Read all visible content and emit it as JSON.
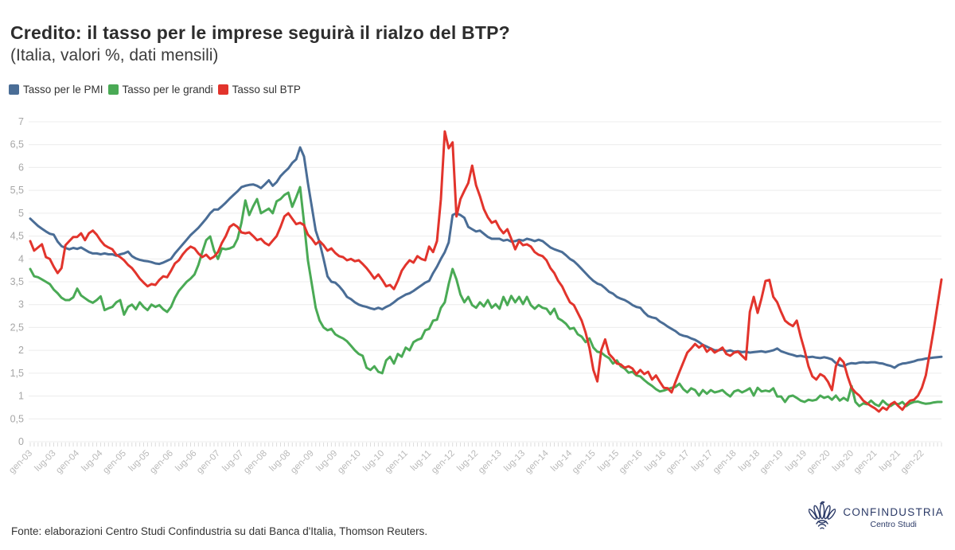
{
  "header": {
    "title": "Credito: il tasso per le imprese seguirà il rialzo del BTP?",
    "subtitle": "(Italia, valori %, dati mensili)"
  },
  "legend": [
    {
      "label": "Tasso per le PMI",
      "color": "#4a6d96"
    },
    {
      "label": "Tasso per le grandi",
      "color": "#4aaa55"
    },
    {
      "label": "Tasso sul BTP",
      "color": "#e2342c"
    }
  ],
  "footer": {
    "source": "Fonte: elaborazioni Centro Studi Confindustria su dati Banca d'Italia, Thomson Reuters."
  },
  "logo": {
    "name": "CONFINDUSTRIA",
    "sub": "Centro Studi",
    "color": "#2b3a67"
  },
  "chart_data": {
    "type": "line",
    "title": "Credito: il tasso per le imprese seguirà il rialzo del BTP?",
    "subtitle": "(Italia, valori %, dati mensili)",
    "x_unit": "monthly, gen-03 to giu-22",
    "ylim": [
      0,
      7
    ],
    "ytick_step": 0.5,
    "ytick_labels": [
      "0",
      "0,5",
      "1",
      "1,5",
      "2",
      "2,5",
      "3",
      "3,5",
      "4",
      "4,5",
      "5",
      "5,5",
      "6",
      "6,5",
      "7"
    ],
    "grid": "horizontal",
    "legend_position": "top-left",
    "x_labels": [
      "gen-03",
      "lug-03",
      "gen-04",
      "lug-04",
      "gen-05",
      "lug-05",
      "gen-06",
      "lug-06",
      "gen-07",
      "lug-07",
      "gen-08",
      "lug-08",
      "gen-09",
      "lug-09",
      "gen-10",
      "lug-10",
      "gen-11",
      "lug-11",
      "gen-12",
      "lug-12",
      "gen-13",
      "lug-13",
      "gen-14",
      "lug-14",
      "gen-15",
      "lug-15",
      "gen-16",
      "lug-16",
      "gen-17",
      "lug-17",
      "gen-18",
      "lug-18",
      "gen-19",
      "lug-19",
      "gen-20",
      "lug-20",
      "gen-21",
      "lug-21",
      "gen-22"
    ],
    "x_label_interval_months": 6,
    "series": [
      {
        "name": "Tasso per le PMI",
        "color": "#4a6d96",
        "values": [
          4.88,
          4.8,
          4.72,
          4.66,
          4.6,
          4.55,
          4.53,
          4.38,
          4.28,
          4.24,
          4.21,
          4.24,
          4.22,
          4.25,
          4.2,
          4.15,
          4.12,
          4.12,
          4.1,
          4.12,
          4.1,
          4.1,
          4.07,
          4.1,
          4.12,
          4.16,
          4.06,
          4.01,
          3.98,
          3.96,
          3.95,
          3.93,
          3.9,
          3.89,
          3.92,
          3.96,
          4.0,
          4.12,
          4.22,
          4.32,
          4.42,
          4.52,
          4.6,
          4.68,
          4.78,
          4.88,
          5.0,
          5.08,
          5.08,
          5.15,
          5.23,
          5.32,
          5.4,
          5.48,
          5.57,
          5.6,
          5.62,
          5.63,
          5.6,
          5.55,
          5.63,
          5.72,
          5.6,
          5.68,
          5.81,
          5.9,
          5.98,
          6.1,
          6.18,
          6.44,
          6.24,
          5.66,
          5.14,
          4.62,
          4.36,
          4.0,
          3.62,
          3.5,
          3.48,
          3.4,
          3.3,
          3.17,
          3.12,
          3.05,
          3.0,
          2.97,
          2.95,
          2.92,
          2.9,
          2.93,
          2.9,
          2.95,
          2.99,
          3.05,
          3.12,
          3.17,
          3.22,
          3.25,
          3.3,
          3.36,
          3.42,
          3.48,
          3.52,
          3.69,
          3.83,
          4.0,
          4.15,
          4.36,
          4.96,
          5.0,
          4.96,
          4.9,
          4.7,
          4.65,
          4.6,
          4.62,
          4.55,
          4.48,
          4.44,
          4.44,
          4.44,
          4.4,
          4.42,
          4.38,
          4.39,
          4.42,
          4.4,
          4.44,
          4.42,
          4.39,
          4.42,
          4.39,
          4.32,
          4.25,
          4.21,
          4.18,
          4.15,
          4.08,
          4.0,
          3.95,
          3.87,
          3.78,
          3.69,
          3.6,
          3.52,
          3.46,
          3.43,
          3.36,
          3.28,
          3.24,
          3.17,
          3.13,
          3.1,
          3.05,
          2.99,
          2.95,
          2.93,
          2.83,
          2.75,
          2.72,
          2.7,
          2.63,
          2.58,
          2.52,
          2.47,
          2.42,
          2.35,
          2.32,
          2.3,
          2.26,
          2.23,
          2.18,
          2.12,
          2.08,
          2.04,
          2.0,
          2.0,
          2.02,
          1.98,
          2.0,
          1.97,
          1.98,
          1.96,
          1.97,
          1.95,
          1.96,
          1.97,
          1.98,
          1.96,
          1.98,
          2.0,
          2.04,
          1.98,
          1.95,
          1.92,
          1.9,
          1.87,
          1.88,
          1.86,
          1.85,
          1.86,
          1.84,
          1.83,
          1.85,
          1.83,
          1.8,
          1.72,
          1.67,
          1.65,
          1.7,
          1.72,
          1.71,
          1.73,
          1.74,
          1.73,
          1.74,
          1.74,
          1.72,
          1.71,
          1.68,
          1.66,
          1.62,
          1.68,
          1.71,
          1.72,
          1.74,
          1.76,
          1.79,
          1.8,
          1.82,
          1.83,
          1.84,
          1.85,
          1.86
        ]
      },
      {
        "name": "Tasso per le grandi",
        "color": "#4aaa55",
        "values": [
          3.78,
          3.62,
          3.6,
          3.55,
          3.5,
          3.45,
          3.33,
          3.25,
          3.15,
          3.1,
          3.1,
          3.16,
          3.35,
          3.2,
          3.14,
          3.08,
          3.04,
          3.1,
          3.18,
          2.88,
          2.92,
          2.95,
          3.05,
          3.1,
          2.78,
          2.95,
          3.0,
          2.9,
          3.05,
          2.95,
          2.88,
          3.0,
          2.95,
          2.99,
          2.9,
          2.84,
          2.95,
          3.15,
          3.3,
          3.4,
          3.5,
          3.57,
          3.66,
          3.87,
          4.15,
          4.41,
          4.49,
          4.18,
          4.0,
          4.23,
          4.21,
          4.23,
          4.27,
          4.44,
          4.79,
          5.28,
          4.96,
          5.15,
          5.31,
          5.0,
          5.05,
          5.1,
          5.0,
          5.26,
          5.31,
          5.4,
          5.45,
          5.14,
          5.35,
          5.57,
          4.8,
          3.97,
          3.45,
          2.93,
          2.65,
          2.5,
          2.44,
          2.47,
          2.35,
          2.3,
          2.26,
          2.2,
          2.1,
          2.0,
          1.92,
          1.88,
          1.62,
          1.57,
          1.65,
          1.53,
          1.5,
          1.78,
          1.86,
          1.71,
          1.92,
          1.86,
          2.06,
          2.0,
          2.18,
          2.23,
          2.26,
          2.44,
          2.47,
          2.65,
          2.67,
          2.93,
          3.05,
          3.45,
          3.78,
          3.55,
          3.22,
          3.05,
          3.17,
          2.99,
          2.93,
          3.05,
          2.96,
          3.1,
          2.93,
          3.01,
          2.91,
          3.17,
          2.99,
          3.19,
          3.05,
          3.17,
          3.01,
          3.17,
          2.99,
          2.91,
          2.99,
          2.93,
          2.91,
          2.79,
          2.91,
          2.7,
          2.65,
          2.58,
          2.47,
          2.49,
          2.35,
          2.3,
          2.18,
          2.26,
          2.06,
          1.97,
          1.95,
          1.88,
          1.83,
          1.71,
          1.78,
          1.65,
          1.6,
          1.51,
          1.53,
          1.45,
          1.43,
          1.35,
          1.28,
          1.22,
          1.15,
          1.1,
          1.12,
          1.15,
          1.18,
          1.2,
          1.27,
          1.15,
          1.08,
          1.17,
          1.13,
          1.01,
          1.13,
          1.05,
          1.13,
          1.08,
          1.1,
          1.13,
          1.05,
          0.99,
          1.1,
          1.13,
          1.08,
          1.12,
          1.17,
          1.01,
          1.18,
          1.1,
          1.12,
          1.1,
          1.17,
          0.99,
          0.99,
          0.87,
          0.99,
          1.01,
          0.96,
          0.9,
          0.87,
          0.92,
          0.9,
          0.92,
          1.01,
          0.96,
          0.99,
          0.92,
          1.01,
          0.9,
          0.96,
          0.9,
          1.22,
          0.87,
          0.78,
          0.84,
          0.82,
          0.9,
          0.82,
          0.78,
          0.9,
          0.82,
          0.78,
          0.84,
          0.82,
          0.87,
          0.78,
          0.84,
          0.87,
          0.88,
          0.85,
          0.83,
          0.84,
          0.86,
          0.87,
          0.87
        ]
      },
      {
        "name": "Tasso sul BTP",
        "color": "#e2342c",
        "values": [
          4.39,
          4.18,
          4.25,
          4.32,
          4.04,
          4.0,
          3.83,
          3.69,
          3.8,
          4.3,
          4.39,
          4.48,
          4.48,
          4.56,
          4.41,
          4.56,
          4.62,
          4.53,
          4.4,
          4.3,
          4.25,
          4.21,
          4.09,
          4.04,
          3.97,
          3.87,
          3.8,
          3.69,
          3.57,
          3.48,
          3.4,
          3.45,
          3.43,
          3.54,
          3.62,
          3.6,
          3.74,
          3.9,
          3.97,
          4.1,
          4.2,
          4.27,
          4.23,
          4.12,
          4.04,
          4.09,
          4.0,
          4.05,
          4.15,
          4.35,
          4.5,
          4.7,
          4.76,
          4.7,
          4.58,
          4.56,
          4.58,
          4.5,
          4.41,
          4.44,
          4.35,
          4.3,
          4.4,
          4.5,
          4.7,
          4.93,
          5.0,
          4.88,
          4.76,
          4.79,
          4.74,
          4.53,
          4.44,
          4.32,
          4.39,
          4.3,
          4.18,
          4.23,
          4.13,
          4.06,
          4.04,
          3.97,
          4.0,
          3.95,
          3.97,
          3.89,
          3.8,
          3.69,
          3.57,
          3.66,
          3.54,
          3.4,
          3.43,
          3.34,
          3.52,
          3.74,
          3.87,
          3.97,
          3.92,
          4.06,
          4.0,
          3.97,
          4.27,
          4.15,
          4.39,
          5.31,
          6.79,
          6.42,
          6.55,
          4.93,
          5.31,
          5.49,
          5.66,
          6.04,
          5.61,
          5.37,
          5.09,
          4.91,
          4.79,
          4.83,
          4.67,
          4.56,
          4.65,
          4.44,
          4.21,
          4.39,
          4.3,
          4.32,
          4.27,
          4.15,
          4.09,
          4.06,
          3.97,
          3.8,
          3.69,
          3.52,
          3.4,
          3.22,
          3.05,
          2.99,
          2.82,
          2.65,
          2.39,
          2.05,
          1.57,
          1.32,
          2.0,
          2.24,
          1.92,
          1.83,
          1.71,
          1.69,
          1.62,
          1.65,
          1.6,
          1.48,
          1.57,
          1.48,
          1.53,
          1.36,
          1.45,
          1.31,
          1.18,
          1.17,
          1.08,
          1.31,
          1.53,
          1.74,
          1.95,
          2.04,
          2.14,
          2.06,
          2.12,
          1.97,
          2.04,
          1.95,
          2.0,
          2.06,
          1.92,
          1.88,
          1.95,
          1.97,
          1.88,
          1.8,
          2.84,
          3.17,
          2.82,
          3.14,
          3.52,
          3.54,
          3.17,
          3.05,
          2.84,
          2.65,
          2.58,
          2.53,
          2.65,
          2.3,
          2.0,
          1.65,
          1.43,
          1.36,
          1.48,
          1.43,
          1.31,
          1.13,
          1.65,
          1.83,
          1.74,
          1.43,
          1.18,
          1.08,
          1.01,
          0.9,
          0.84,
          0.78,
          0.73,
          0.66,
          0.75,
          0.7,
          0.82,
          0.87,
          0.78,
          0.7,
          0.82,
          0.9,
          0.92,
          1.01,
          1.18,
          1.45,
          1.95,
          2.45,
          3.0,
          3.55
        ]
      }
    ]
  }
}
